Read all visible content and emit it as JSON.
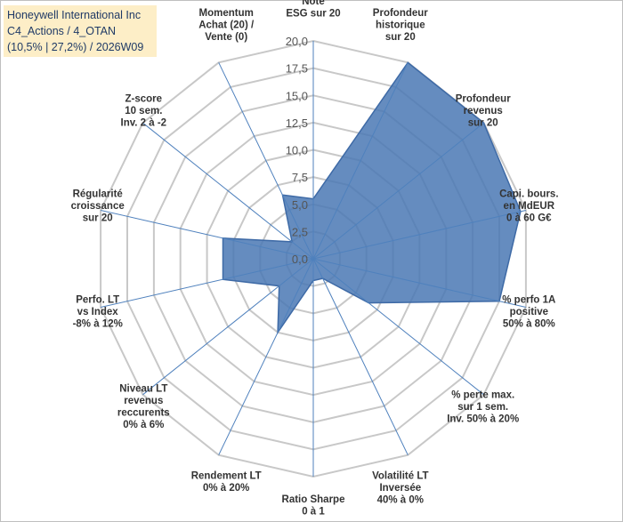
{
  "title": {
    "line1": "Honeywell International Inc",
    "line2": "C4_Actions / 4_OTAN",
    "line3": "(10,5% | 27,2%) / 2026W09"
  },
  "chart_data": {
    "type": "radar",
    "rmin": 0,
    "rmax": 20,
    "tick_step": 2.5,
    "tick_labels": [
      "0,0",
      "2,5",
      "5,0",
      "7,5",
      "10,0",
      "12,5",
      "15,0",
      "17,5",
      "20,0"
    ],
    "axes": [
      {
        "label": [
          "Note",
          "ESG sur 20"
        ],
        "value": 5.5
      },
      {
        "label": [
          "Profondeur",
          "historique",
          "sur 20"
        ],
        "value": 20
      },
      {
        "label": [
          "Profondeur",
          "revenus",
          "sur 20"
        ],
        "value": 20
      },
      {
        "label": [
          "Capi. bours.",
          "en MdEUR",
          "0 à 60 G€"
        ],
        "value": 19.5
      },
      {
        "label": [
          "% perfo 1A",
          "positive",
          "50% à 80%"
        ],
        "value": 17.5
      },
      {
        "label": [
          "% perte max.",
          "sur 1 sem.",
          "Inv. 50% à 20%"
        ],
        "value": 6.5
      },
      {
        "label": [
          "Volatilité LT",
          "Inversée",
          "40% à 0%"
        ],
        "value": 2
      },
      {
        "label": [
          "Ratio Sharpe",
          "0 à 1"
        ],
        "value": 2
      },
      {
        "label": [
          "Rendement LT",
          "0% à 20%"
        ],
        "value": 7.5
      },
      {
        "label": [
          "Niveau LT",
          "revenus",
          "reccurents",
          "0% à 6%"
        ],
        "value": 4
      },
      {
        "label": [
          "Perfo. LT",
          "vs Index",
          "-8% à 12%"
        ],
        "value": 8.5
      },
      {
        "label": [
          "Régularité",
          "croissance",
          "sur 20"
        ],
        "value": 8.5
      },
      {
        "label": [
          "Z-score",
          "10 sem.",
          "Inv. 2 à -2"
        ],
        "value": 2.5
      },
      {
        "label": [
          "Momentum",
          "Achat (20) /",
          "Vente (0)"
        ],
        "value": 6.5
      }
    ],
    "colors": {
      "fill": "#4a78b4",
      "stroke": "#3e6aa6",
      "axis": "#4f81bd",
      "grid": "#c8c8c8"
    }
  }
}
